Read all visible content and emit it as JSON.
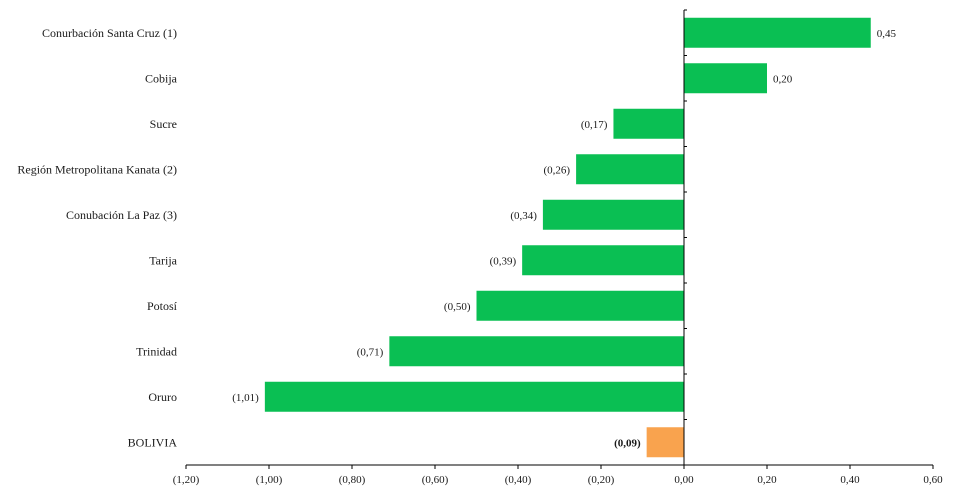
{
  "chart_data": {
    "type": "bar",
    "orientation": "horizontal",
    "categories": [
      "Conurbación Santa Cruz (1)",
      "Cobija",
      "Sucre",
      "Región Metropolitana Kanata (2)",
      "Conubación La Paz (3)",
      "Tarija",
      "Potosí",
      "Trinidad",
      "Oruro",
      "BOLIVIA"
    ],
    "values": [
      0.45,
      0.2,
      -0.17,
      -0.26,
      -0.34,
      -0.39,
      -0.5,
      -0.71,
      -1.01,
      -0.09
    ],
    "value_labels": [
      "0,45",
      "0,20",
      "(0,17)",
      "(0,26)",
      "(0,34)",
      "(0,39)",
      "(0,50)",
      "(0,71)",
      "(1,01)",
      "(0,09)"
    ],
    "bar_colors": [
      "#0abf53",
      "#0abf53",
      "#0abf53",
      "#0abf53",
      "#0abf53",
      "#0abf53",
      "#0abf53",
      "#0abf53",
      "#0abf53",
      "#f9a34e"
    ],
    "bold_labels": [
      false,
      false,
      false,
      false,
      false,
      false,
      false,
      false,
      false,
      true
    ],
    "xlim": [
      -1.2,
      0.6
    ],
    "x_ticks": [
      -1.2,
      -1.0,
      -0.8,
      -0.6,
      -0.4,
      -0.2,
      0.0,
      0.2,
      0.4,
      0.6
    ],
    "x_tick_labels": [
      "(1,20)",
      "(1,00)",
      "(0,80)",
      "(0,60)",
      "(0,40)",
      "(0,20)",
      "0,00",
      "0,20",
      "0,40",
      "0,60"
    ],
    "grid": false,
    "legend": "none",
    "title": "",
    "xlabel": "",
    "ylabel": ""
  }
}
